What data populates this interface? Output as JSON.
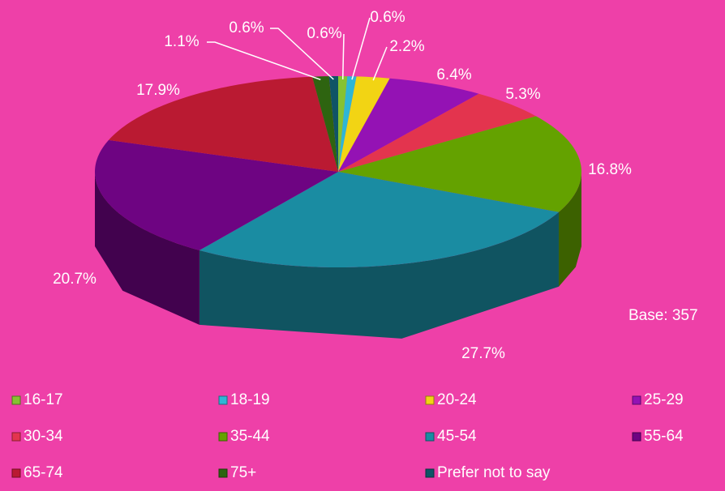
{
  "chart_data": {
    "type": "pie3d",
    "categories": [
      "16-17",
      "18-19",
      "20-24",
      "25-29",
      "30-34",
      "35-44",
      "45-54",
      "55-64",
      "65-74",
      "75+",
      "Prefer not to say"
    ],
    "values": [
      0.6,
      0.6,
      2.2,
      6.4,
      5.3,
      16.8,
      27.7,
      20.7,
      17.9,
      1.1,
      0.6
    ],
    "value_labels": [
      "0.6%",
      "0.6%",
      "2.2%",
      "6.4%",
      "5.3%",
      "16.8%",
      "27.7%",
      "20.7%",
      "17.9%",
      "1.1%",
      "0.6%"
    ],
    "colors": [
      "#86c232",
      "#2eb6d6",
      "#f2d414",
      "#9412b4",
      "#e3344e",
      "#64a200",
      "#1a8ca2",
      "#6e0482",
      "#ba1a32",
      "#2e6410",
      "#0f5466"
    ],
    "annotation": "Base: 357",
    "legend": "bottom"
  }
}
